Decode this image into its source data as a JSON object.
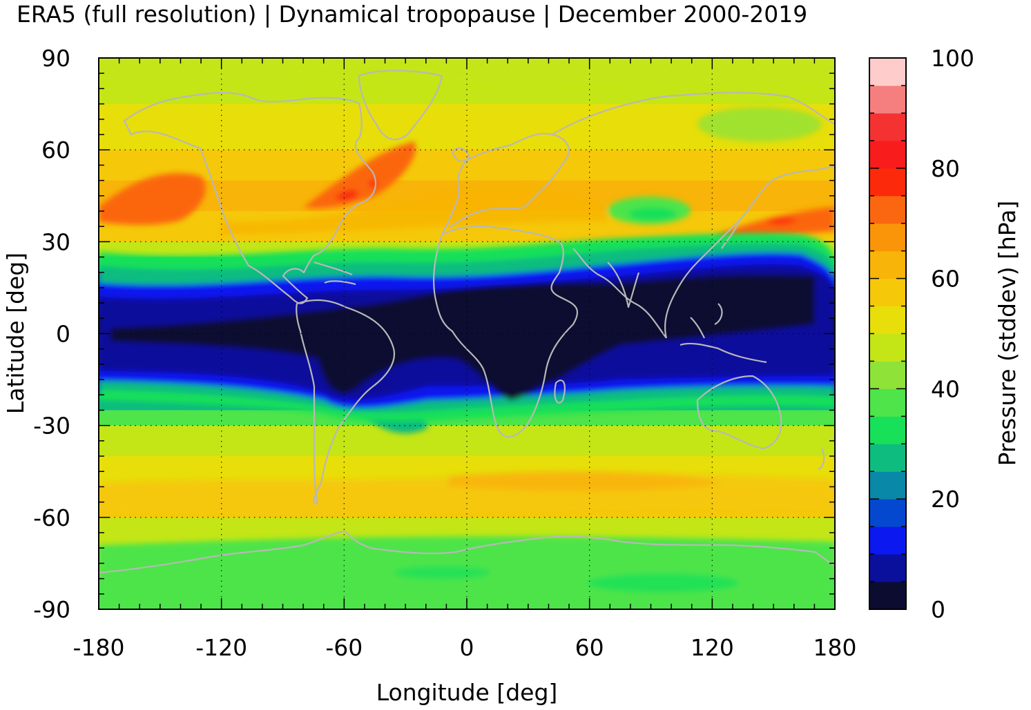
{
  "title": "ERA5 (full resolution) | Dynamical tropopause | December 2000-2019",
  "chart_data": {
    "type": "heatmap",
    "title": "ERA5 (full resolution) | Dynamical tropopause | December 2000-2019",
    "xlabel": "Longitude [deg]",
    "ylabel": "Latitude [deg]",
    "xlim": [
      -180,
      180
    ],
    "ylim": [
      -90,
      90
    ],
    "xticks": [
      "-180",
      "-120",
      "-60",
      "0",
      "60",
      "120",
      "180"
    ],
    "yticks": [
      "90",
      "60",
      "30",
      "0",
      "-30",
      "-60",
      "-90"
    ],
    "xtick_values": [
      -180,
      -120,
      -60,
      0,
      60,
      120,
      180
    ],
    "ytick_values": [
      90,
      60,
      30,
      0,
      -30,
      -60,
      -90
    ],
    "grid": true,
    "coastlines": true,
    "colorbar": {
      "label": "Pressure (stddev) [hPa]",
      "range": [
        0,
        100
      ],
      "ticks": [
        "0",
        "20",
        "40",
        "60",
        "80",
        "100"
      ],
      "tick_values": [
        0,
        20,
        40,
        60,
        80,
        100
      ],
      "levels": 20,
      "colors": [
        "#0c0c30",
        "#0a0f9c",
        "#0b18f0",
        "#0548d0",
        "#0a88a8",
        "#0ebc80",
        "#18e058",
        "#4ee44a",
        "#8ee238",
        "#c4e616",
        "#e8de0a",
        "#f5c80a",
        "#f8b408",
        "#fa9408",
        "#fb6610",
        "#fc2a0a",
        "#f81c1c",
        "#f53232",
        "#f57f7f",
        "#ffcccc"
      ]
    },
    "value_profile": {
      "description_lat": [
        90,
        75,
        60,
        50,
        40,
        30,
        25,
        20,
        15,
        10,
        5,
        0,
        -5,
        -10,
        -15,
        -20,
        -25,
        -30,
        -40,
        -50,
        -60,
        -70,
        -80,
        -90
      ],
      "zonal_mean_hPa": [
        48,
        47,
        55,
        64,
        60,
        55,
        42,
        25,
        12,
        6,
        5,
        4,
        6,
        8,
        14,
        22,
        34,
        42,
        50,
        58,
        52,
        44,
        40,
        38
      ]
    }
  }
}
